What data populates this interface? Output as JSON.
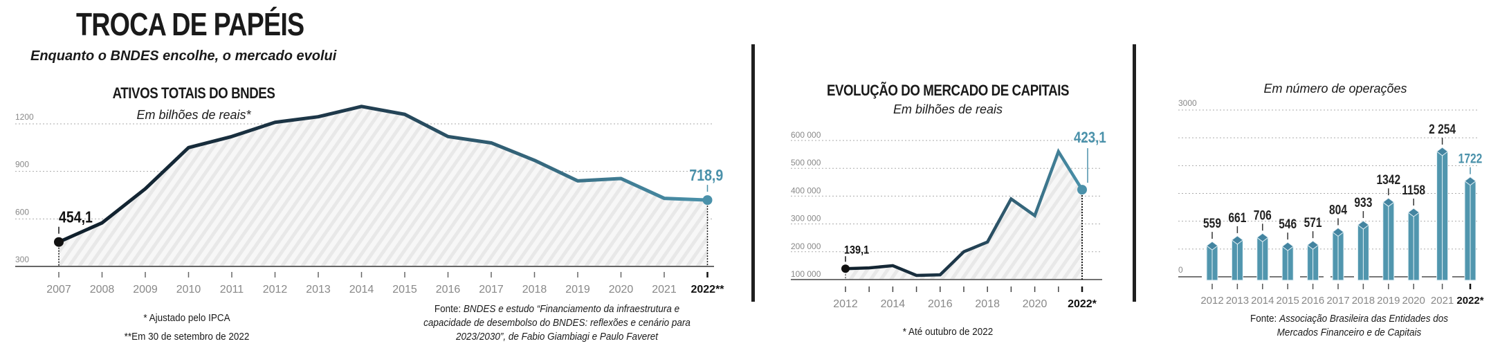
{
  "header": {
    "title": "TROCA DE PAPÉIS",
    "subtitle": "Enquanto o BNDES encolhe, o mercado evolui"
  },
  "colors": {
    "dark_line": "#0f1e2a",
    "accent": "#4a91aa",
    "hatch": "#e6e6e6",
    "grid": "#aaaaaa",
    "axis_label": "#888888"
  },
  "chart_data": [
    {
      "type": "area",
      "title": "ATIVOS TOTAIS DO BNDES",
      "subtitle": "Em bilhões de reais*",
      "x": [
        "2007",
        "2008",
        "2009",
        "2010",
        "2011",
        "2012",
        "2013",
        "2014",
        "2015",
        "2016",
        "2017",
        "2018",
        "2019",
        "2020",
        "2021",
        "2022**"
      ],
      "values": [
        454.1,
        575,
        790,
        1050,
        1120,
        1210,
        1245,
        1310,
        1260,
        1120,
        1080,
        970,
        840,
        855,
        730,
        718.9
      ],
      "yticks": [
        "300",
        "600",
        "900",
        "1200"
      ],
      "ytick_values": [
        300,
        600,
        900,
        1200
      ],
      "ylim": [
        300,
        1200
      ],
      "grid": true,
      "annotations": [
        {
          "index": 0,
          "label": "454,1"
        },
        {
          "index": 15,
          "label": "718,9"
        }
      ],
      "notes": [
        "* Ajustado pelo IPCA",
        "**Em 30 de setembro de 2022"
      ],
      "source_prefix": "Fonte:",
      "source": "BNDES e estudo “Financiamento da infraestrutura e capacidade de desembolso do BNDES: reflexões e cenário para 2023/2030”, de Fabio Giambiagi e Paulo Faveret",
      "source_lines": [
        "BNDES e estudo “Financiamento da infraestrutura e",
        "capacidade de desembolso do BNDES: reflexões e cenário para",
        "2023/2030”, de Fabio Giambiagi e Paulo Faveret"
      ]
    },
    {
      "type": "area",
      "title": "EVOLUÇÃO DO MERCADO DE CAPITAIS",
      "subtitle": "Em bilhões de reais",
      "x": [
        "2012",
        "2013",
        "2014",
        "2015",
        "2016",
        "2017",
        "2018",
        "2019",
        "2020",
        "2021",
        "2022*"
      ],
      "x_labels": [
        "2012",
        "",
        "2014",
        "",
        "2016",
        "",
        "2018",
        "",
        "2020",
        "",
        "2022*"
      ],
      "values": [
        139100,
        142000,
        150000,
        115000,
        117000,
        200000,
        235000,
        390000,
        330000,
        560000,
        423100
      ],
      "yticks": [
        "100 000",
        "200 000",
        "300 000",
        "400 000",
        "500 000",
        "600 000"
      ],
      "ytick_values": [
        100000,
        200000,
        300000,
        400000,
        500000,
        600000
      ],
      "ylim": [
        100000,
        600000
      ],
      "grid": true,
      "annotations": [
        {
          "index": 0,
          "label": "139,1"
        },
        {
          "index": 10,
          "label": "423,1"
        }
      ],
      "notes": [
        "* Até outubro de 2022"
      ]
    },
    {
      "type": "bar",
      "title": "",
      "subtitle": "Em número de operações",
      "categories": [
        "2012",
        "2013",
        "2014",
        "2015",
        "2016",
        "2017",
        "2018",
        "2019",
        "2020",
        "2021",
        "2022*"
      ],
      "values": [
        559,
        661,
        706,
        546,
        571,
        804,
        933,
        1342,
        1158,
        2254,
        1722
      ],
      "value_labels": [
        "559",
        "661",
        "706",
        "546",
        "571",
        "804",
        "933",
        "1342",
        "1158",
        "2 254",
        "1722"
      ],
      "yticks": [
        "0",
        "3000"
      ],
      "ytick_values": [
        0,
        3000
      ],
      "grid_values": [
        500,
        1000,
        1500,
        2000,
        2500,
        3000
      ],
      "ylim": [
        0,
        3000
      ],
      "grid": true,
      "source_prefix": "Fonte:",
      "source_lines": [
        "Associação Brasileira das Entidades dos",
        "Mercados Financeiro e de Capitais"
      ]
    }
  ]
}
